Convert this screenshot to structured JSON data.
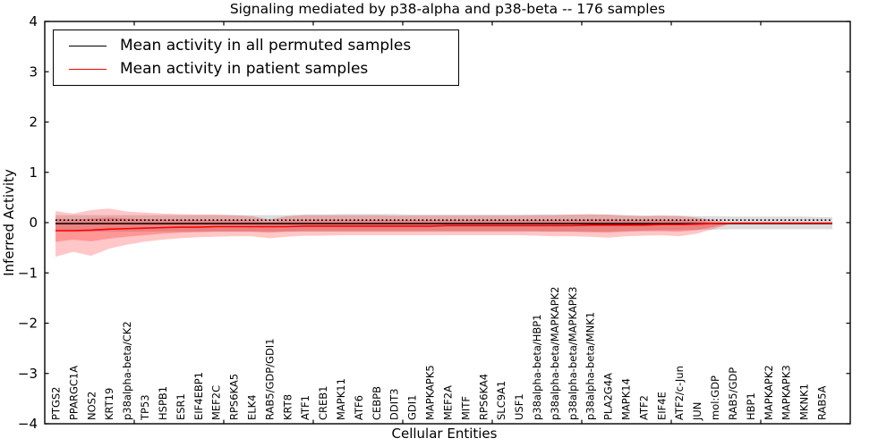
{
  "legend": {
    "items": [
      {
        "label": "Mean activity in all permuted samples",
        "color": "#000000"
      },
      {
        "label": "Mean activity in patient samples",
        "color": "#ff0000"
      }
    ],
    "position": "upper left"
  },
  "chart_data": {
    "type": "line",
    "title": "Signaling mediated by p38-alpha and p38-beta -- 176 samples",
    "xlabel": "Cellular Entities",
    "ylabel": "Inferred Activity",
    "ylim": [
      -4,
      4
    ],
    "yticks": [
      4,
      3,
      2,
      1,
      0,
      -1,
      -2,
      -3,
      -4
    ],
    "grid": false,
    "legend_position": "upper left",
    "categories": [
      "PTGS2",
      "PPARGC1A",
      "NOS2",
      "KRT19",
      "p38alpha-beta/CK2",
      "TP53",
      "HSPB1",
      "ESR1",
      "EIF4EBP1",
      "MEF2C",
      "RPS6KA5",
      "ELK4",
      "RAB5/GDP/GDI1",
      "KRT8",
      "ATF1",
      "CREB1",
      "MAPK11",
      "ATF6",
      "CEBPB",
      "DDIT3",
      "GDI1",
      "MAPKAPK5",
      "MEF2A",
      "MITF",
      "RPS6KA4",
      "SLC9A1",
      "USF1",
      "p38alpha-beta/HBP1",
      "p38alpha-beta/MAPKAPK2",
      "p38alpha-beta/MAPKAPK3",
      "p38alpha-beta/MNK1",
      "PLA2G4A",
      "MAPK14",
      "ATF2",
      "EIF4E",
      "ATF2/c-Jun",
      "JUN",
      "mol:GDP",
      "RAB5/GDP",
      "HBP1",
      "MAPKAPK2",
      "MAPKAPK3",
      "MKNK1",
      "RAB5A"
    ],
    "series": [
      {
        "name": "Mean activity in all permuted samples",
        "color": "#000000",
        "style": "solid",
        "width": 1.4,
        "values": [
          -0.02,
          -0.02,
          -0.02,
          -0.02,
          -0.02,
          -0.02,
          -0.02,
          -0.02,
          -0.02,
          -0.02,
          -0.02,
          -0.02,
          -0.02,
          -0.02,
          -0.02,
          -0.02,
          -0.02,
          -0.02,
          -0.02,
          -0.02,
          -0.02,
          -0.02,
          -0.02,
          -0.02,
          -0.02,
          -0.02,
          -0.02,
          -0.02,
          -0.02,
          -0.02,
          -0.02,
          -0.02,
          -0.02,
          -0.02,
          -0.02,
          -0.02,
          -0.02,
          -0.02,
          -0.02,
          -0.02,
          -0.02,
          -0.02,
          -0.02,
          -0.02
        ]
      },
      {
        "name": "dotted-reference-line",
        "color": "#000000",
        "style": "dotted",
        "width": 1.7,
        "values": [
          0.05,
          0.05,
          0.05,
          0.05,
          0.05,
          0.05,
          0.05,
          0.05,
          0.05,
          0.05,
          0.05,
          0.05,
          0.05,
          0.05,
          0.05,
          0.05,
          0.05,
          0.05,
          0.05,
          0.05,
          0.05,
          0.05,
          0.05,
          0.05,
          0.05,
          0.05,
          0.05,
          0.05,
          0.05,
          0.05,
          0.05,
          0.05,
          0.05,
          0.05,
          0.05,
          0.05,
          0.05,
          0.05,
          0.05,
          0.05,
          0.05,
          0.05,
          0.05,
          0.05
        ]
      },
      {
        "name": "Mean activity in patient samples",
        "color": "#ff0000",
        "style": "solid",
        "width": 1.6,
        "values": [
          -0.16,
          -0.16,
          -0.15,
          -0.13,
          -0.12,
          -0.11,
          -0.1,
          -0.09,
          -0.09,
          -0.08,
          -0.08,
          -0.08,
          -0.08,
          -0.08,
          -0.07,
          -0.07,
          -0.07,
          -0.07,
          -0.07,
          -0.07,
          -0.07,
          -0.07,
          -0.06,
          -0.06,
          -0.06,
          -0.06,
          -0.06,
          -0.06,
          -0.06,
          -0.06,
          -0.05,
          -0.05,
          -0.05,
          -0.05,
          -0.04,
          -0.04,
          -0.03,
          -0.02,
          -0.01,
          -0.01,
          -0.01,
          -0.01,
          -0.01,
          -0.01
        ]
      }
    ],
    "bands": [
      {
        "name": "permuted-samples-range",
        "color": "rgba(125,125,125,0.27)",
        "upper": [
          0.15,
          0.15,
          0.15,
          0.15,
          0.15,
          0.15,
          0.15,
          0.15,
          0.15,
          0.15,
          0.15,
          0.15,
          0.15,
          0.15,
          0.16,
          0.16,
          0.17,
          0.17,
          0.17,
          0.17,
          0.16,
          0.16,
          0.16,
          0.16,
          0.16,
          0.16,
          0.16,
          0.16,
          0.16,
          0.16,
          0.16,
          0.16,
          0.15,
          0.14,
          0.14,
          0.14,
          0.13,
          0.13,
          0.12,
          0.12,
          0.12,
          0.12,
          0.12,
          0.11
        ],
        "lower": [
          -0.18,
          -0.18,
          -0.18,
          -0.18,
          -0.18,
          -0.18,
          -0.18,
          -0.18,
          -0.18,
          -0.18,
          -0.18,
          -0.18,
          -0.18,
          -0.18,
          -0.18,
          -0.18,
          -0.18,
          -0.18,
          -0.18,
          -0.18,
          -0.18,
          -0.18,
          -0.18,
          -0.18,
          -0.18,
          -0.18,
          -0.18,
          -0.18,
          -0.18,
          -0.18,
          -0.18,
          -0.18,
          -0.17,
          -0.16,
          -0.15,
          -0.15,
          -0.14,
          -0.14,
          -0.13,
          -0.13,
          -0.13,
          -0.13,
          -0.13,
          -0.13
        ]
      },
      {
        "name": "patient-samples-outer-band",
        "color": "rgba(255,0,0,0.22)",
        "upper": [
          0.23,
          0.18,
          0.25,
          0.28,
          0.22,
          0.2,
          0.18,
          0.17,
          0.16,
          0.16,
          0.15,
          0.13,
          0.06,
          0.13,
          0.15,
          0.15,
          0.15,
          0.15,
          0.15,
          0.14,
          0.14,
          0.14,
          0.14,
          0.14,
          0.14,
          0.14,
          0.14,
          0.15,
          0.15,
          0.16,
          0.17,
          0.16,
          0.14,
          0.13,
          0.14,
          0.13,
          0.1,
          0.05,
          -0.01
        ],
        "lower": [
          -0.68,
          -0.58,
          -0.66,
          -0.52,
          -0.44,
          -0.38,
          -0.34,
          -0.31,
          -0.29,
          -0.28,
          -0.27,
          -0.27,
          -0.31,
          -0.28,
          -0.26,
          -0.26,
          -0.25,
          -0.25,
          -0.25,
          -0.25,
          -0.25,
          -0.25,
          -0.25,
          -0.25,
          -0.25,
          -0.25,
          -0.25,
          -0.26,
          -0.27,
          -0.27,
          -0.28,
          -0.3,
          -0.27,
          -0.26,
          -0.25,
          -0.27,
          -0.22,
          -0.12,
          -0.01
        ]
      },
      {
        "name": "patient-samples-inner-band",
        "color": "rgba(255,0,0,0.24)",
        "upper": [
          0.08,
          0.06,
          0.08,
          0.1,
          0.08,
          0.07,
          0.06,
          0.06,
          0.05,
          0.05,
          0.05,
          0.04,
          0.02,
          0.04,
          0.05,
          0.05,
          0.05,
          0.05,
          0.05,
          0.05,
          0.05,
          0.05,
          0.05,
          0.05,
          0.05,
          0.05,
          0.05,
          0.05,
          0.05,
          0.05,
          0.06,
          0.06,
          0.05,
          0.05,
          0.05,
          0.05,
          0.04,
          0.01,
          -0.01
        ],
        "lower": [
          -0.38,
          -0.34,
          -0.37,
          -0.32,
          -0.28,
          -0.25,
          -0.22,
          -0.2,
          -0.19,
          -0.18,
          -0.18,
          -0.18,
          -0.2,
          -0.18,
          -0.17,
          -0.17,
          -0.17,
          -0.17,
          -0.17,
          -0.17,
          -0.17,
          -0.17,
          -0.17,
          -0.17,
          -0.17,
          -0.17,
          -0.17,
          -0.17,
          -0.18,
          -0.18,
          -0.19,
          -0.2,
          -0.18,
          -0.17,
          -0.17,
          -0.18,
          -0.15,
          -0.08,
          -0.01
        ]
      }
    ]
  }
}
